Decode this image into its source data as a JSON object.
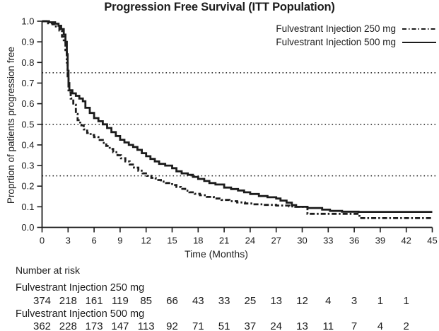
{
  "chart_data": {
    "type": "line",
    "subtype": "kaplan-meier-step",
    "title": "Progression Free Survival (ITT Population)",
    "xlabel": "Time (Months)",
    "ylabel": "Proprtion of patients progression free",
    "xlim": [
      0,
      45
    ],
    "xticks": [
      0,
      3,
      6,
      9,
      12,
      15,
      18,
      21,
      24,
      27,
      30,
      33,
      36,
      39,
      42,
      45
    ],
    "ylim": [
      0,
      1
    ],
    "yticks": [
      0,
      0.1,
      0.2,
      0.3,
      0.4,
      0.5,
      0.6,
      0.7,
      0.8,
      0.9,
      1.0
    ],
    "reference_lines_y": [
      0.25,
      0.5,
      0.75
    ],
    "grid": "horizontal dotted reference lines only",
    "legend_position": "top-right",
    "colors": {
      "ink": "#1c1c1c",
      "background": "#ffffff"
    },
    "series": [
      {
        "name": "Fulvestrant Injection 250 mg",
        "line_style": "dash-dot",
        "color": "#1c1c1c",
        "steps": [
          [
            0,
            1.0
          ],
          [
            0.7,
            0.99
          ],
          [
            1.2,
            0.985
          ],
          [
            1.6,
            0.975
          ],
          [
            2.0,
            0.955
          ],
          [
            2.3,
            0.925
          ],
          [
            2.5,
            0.9
          ],
          [
            2.7,
            0.86
          ],
          [
            2.85,
            0.8
          ],
          [
            2.95,
            0.72
          ],
          [
            3.05,
            0.655
          ],
          [
            3.3,
            0.625
          ],
          [
            3.6,
            0.595
          ],
          [
            3.9,
            0.55
          ],
          [
            4.1,
            0.52
          ],
          [
            4.4,
            0.495
          ],
          [
            4.8,
            0.475
          ],
          [
            5.2,
            0.458
          ],
          [
            5.6,
            0.448
          ],
          [
            6.0,
            0.438
          ],
          [
            6.5,
            0.424
          ],
          [
            7.0,
            0.41
          ],
          [
            7.4,
            0.395
          ],
          [
            7.8,
            0.38
          ],
          [
            8.2,
            0.365
          ],
          [
            8.7,
            0.35
          ],
          [
            9.1,
            0.335
          ],
          [
            9.6,
            0.32
          ],
          [
            10.1,
            0.305
          ],
          [
            10.6,
            0.29
          ],
          [
            11.1,
            0.275
          ],
          [
            11.6,
            0.262
          ],
          [
            12.1,
            0.25
          ],
          [
            12.6,
            0.24
          ],
          [
            13.1,
            0.23
          ],
          [
            13.7,
            0.222
          ],
          [
            14.3,
            0.215
          ],
          [
            15.0,
            0.205
          ],
          [
            15.5,
            0.196
          ],
          [
            16.0,
            0.187
          ],
          [
            16.5,
            0.178
          ],
          [
            17.0,
            0.17
          ],
          [
            17.6,
            0.163
          ],
          [
            18.2,
            0.156
          ],
          [
            19.0,
            0.148
          ],
          [
            19.8,
            0.14
          ],
          [
            20.7,
            0.133
          ],
          [
            21.6,
            0.127
          ],
          [
            22.5,
            0.121
          ],
          [
            23.4,
            0.116
          ],
          [
            24.3,
            0.112
          ],
          [
            25.5,
            0.109
          ],
          [
            27.0,
            0.106
          ],
          [
            28.5,
            0.102
          ],
          [
            29.2,
            0.1
          ],
          [
            30.6,
            0.066
          ],
          [
            36.6,
            0.045
          ]
        ]
      },
      {
        "name": "Fulvestrant Injection 500 mg",
        "line_style": "solid",
        "color": "#1c1c1c",
        "steps": [
          [
            0,
            1.0
          ],
          [
            0.8,
            0.995
          ],
          [
            1.5,
            0.988
          ],
          [
            1.9,
            0.978
          ],
          [
            2.2,
            0.962
          ],
          [
            2.5,
            0.935
          ],
          [
            2.7,
            0.9
          ],
          [
            2.85,
            0.84
          ],
          [
            2.95,
            0.76
          ],
          [
            3.05,
            0.7
          ],
          [
            3.15,
            0.665
          ],
          [
            3.5,
            0.65
          ],
          [
            3.9,
            0.638
          ],
          [
            4.3,
            0.625
          ],
          [
            4.7,
            0.612
          ],
          [
            5.0,
            0.58
          ],
          [
            5.5,
            0.555
          ],
          [
            6.0,
            0.53
          ],
          [
            6.5,
            0.515
          ],
          [
            7.0,
            0.5
          ],
          [
            7.5,
            0.482
          ],
          [
            8.0,
            0.462
          ],
          [
            8.5,
            0.443
          ],
          [
            9.0,
            0.425
          ],
          [
            9.5,
            0.412
          ],
          [
            10.0,
            0.4
          ],
          [
            10.5,
            0.39
          ],
          [
            11.0,
            0.376
          ],
          [
            11.5,
            0.36
          ],
          [
            12.0,
            0.345
          ],
          [
            12.5,
            0.332
          ],
          [
            13.0,
            0.32
          ],
          [
            13.5,
            0.308
          ],
          [
            14.2,
            0.3
          ],
          [
            15.0,
            0.287
          ],
          [
            15.5,
            0.272
          ],
          [
            16.1,
            0.262
          ],
          [
            16.8,
            0.255
          ],
          [
            17.4,
            0.245
          ],
          [
            18.0,
            0.235
          ],
          [
            18.7,
            0.225
          ],
          [
            19.3,
            0.215
          ],
          [
            20.0,
            0.208
          ],
          [
            21.0,
            0.193
          ],
          [
            21.8,
            0.186
          ],
          [
            22.6,
            0.179
          ],
          [
            23.3,
            0.17
          ],
          [
            24.0,
            0.162
          ],
          [
            25.0,
            0.152
          ],
          [
            26.0,
            0.146
          ],
          [
            27.0,
            0.14
          ],
          [
            27.5,
            0.13
          ],
          [
            28.2,
            0.12
          ],
          [
            28.8,
            0.108
          ],
          [
            29.3,
            0.1
          ],
          [
            30.6,
            0.094
          ],
          [
            32.3,
            0.086
          ],
          [
            33.2,
            0.08
          ],
          [
            34.6,
            0.076
          ],
          [
            36.5,
            0.075
          ]
        ]
      }
    ],
    "number_at_risk": {
      "label": "Number at risk",
      "months": [
        0,
        3,
        6,
        9,
        12,
        15,
        18,
        21,
        24,
        27,
        30,
        33,
        36,
        39,
        42
      ],
      "rows": [
        {
          "name": "Fulvestrant Injection 250 mg",
          "counts": [
            374,
            218,
            161,
            119,
            85,
            66,
            43,
            33,
            25,
            13,
            12,
            4,
            3,
            1,
            1
          ]
        },
        {
          "name": "Fulvestrant Injection 500 mg",
          "counts": [
            362,
            228,
            173,
            147,
            113,
            92,
            71,
            51,
            37,
            24,
            13,
            11,
            7,
            4,
            2
          ]
        }
      ]
    }
  }
}
